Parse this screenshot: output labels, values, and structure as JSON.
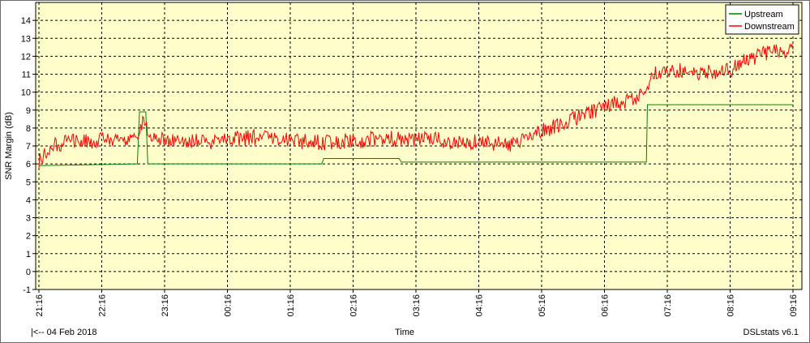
{
  "chart_data": {
    "type": "line",
    "ylabel": "SNR Margin (dB)",
    "xlabel": "Time",
    "date_note": "|<-- 04 Feb 2018",
    "brand": "DSLstats v6.1",
    "ylim": [
      -1,
      14
    ],
    "y_ticks": [
      -1,
      0,
      1,
      2,
      3,
      4,
      5,
      6,
      7,
      8,
      9,
      10,
      11,
      12,
      13,
      14
    ],
    "x_range": [
      "21:16",
      "09:16"
    ],
    "x_ticks": [
      "21:16",
      "22:16",
      "23:16",
      "00:16",
      "01:16",
      "02:16",
      "03:16",
      "04:16",
      "05:16",
      "06:16",
      "07:16",
      "08:16",
      "09:16"
    ],
    "grid": true,
    "legend": "top-right",
    "background": "#ffffcc",
    "series": [
      {
        "name": "Upstream",
        "color": "#008000",
        "points": [
          [
            "21:16",
            5.9
          ],
          [
            "22:50",
            6.0
          ],
          [
            "22:52",
            8.9
          ],
          [
            "22:58",
            8.9
          ],
          [
            "23:00",
            6.0
          ],
          [
            "00:16",
            6.0
          ],
          [
            "01:46",
            6.0
          ],
          [
            "01:48",
            6.3
          ],
          [
            "02:16",
            6.3
          ],
          [
            "03:00",
            6.3
          ],
          [
            "03:02",
            6.1
          ],
          [
            "04:16",
            6.1
          ],
          [
            "05:16",
            6.1
          ],
          [
            "06:16",
            6.1
          ],
          [
            "06:56",
            6.1
          ],
          [
            "06:57",
            9.3
          ],
          [
            "07:16",
            9.3
          ],
          [
            "08:16",
            9.3
          ],
          [
            "09:16",
            9.3
          ]
        ]
      },
      {
        "name": "Downstream",
        "color": "#ff0000",
        "points": [
          [
            "21:16",
            6.2
          ],
          [
            "21:26",
            6.9
          ],
          [
            "21:46",
            7.3
          ],
          [
            "22:16",
            7.3
          ],
          [
            "22:46",
            7.4
          ],
          [
            "22:56",
            8.3
          ],
          [
            "23:06",
            7.4
          ],
          [
            "23:36",
            7.2
          ],
          [
            "00:16",
            7.3
          ],
          [
            "00:46",
            7.5
          ],
          [
            "01:16",
            7.3
          ],
          [
            "01:46",
            7.2
          ],
          [
            "02:16",
            7.3
          ],
          [
            "02:46",
            7.4
          ],
          [
            "03:16",
            7.4
          ],
          [
            "03:46",
            7.3
          ],
          [
            "04:16",
            7.2
          ],
          [
            "04:46",
            7.1
          ],
          [
            "05:16",
            7.8
          ],
          [
            "05:46",
            8.5
          ],
          [
            "06:16",
            9.2
          ],
          [
            "06:46",
            9.7
          ],
          [
            "06:56",
            9.9
          ],
          [
            "07:00",
            11.1
          ],
          [
            "07:16",
            11.2
          ],
          [
            "07:46",
            11.1
          ],
          [
            "08:16",
            11.2
          ],
          [
            "08:31",
            11.8
          ],
          [
            "08:46",
            12.1
          ],
          [
            "09:16",
            12.4
          ]
        ]
      }
    ]
  }
}
